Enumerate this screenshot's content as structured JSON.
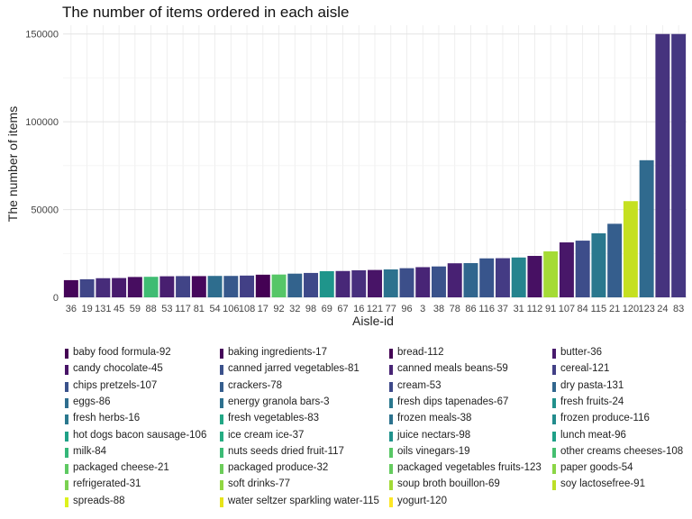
{
  "chart_data": {
    "type": "bar",
    "title": "The number of items ordered in each aisle",
    "xlabel": "Aisle-id",
    "ylabel": "The number of items",
    "ylim": [
      0,
      155000
    ],
    "yticks": [
      0,
      50000,
      100000,
      150000
    ],
    "ytick_labels": [
      "0",
      "50000",
      "100000",
      "150000"
    ],
    "grid": true,
    "legend_position": "bottom",
    "categories": [
      "36",
      "19",
      "131",
      "45",
      "59",
      "88",
      "53",
      "117",
      "81",
      "54",
      "106",
      "108",
      "17",
      "92",
      "32",
      "98",
      "69",
      "67",
      "16",
      "121",
      "77",
      "96",
      "3",
      "38",
      "78",
      "86",
      "116",
      "37",
      "31",
      "112",
      "91",
      "107",
      "84",
      "115",
      "21",
      "120",
      "123",
      "24",
      "83"
    ],
    "values": [
      9800,
      10300,
      10900,
      11000,
      11600,
      11700,
      12000,
      12100,
      12100,
      12200,
      12200,
      12400,
      12900,
      13000,
      13500,
      13900,
      14900,
      15000,
      15400,
      15600,
      15900,
      16600,
      17200,
      17600,
      19400,
      19500,
      22200,
      22300,
      22700,
      23600,
      26200,
      31300,
      32300,
      36500,
      41900,
      54800,
      78100,
      150000,
      150000
    ],
    "color_order": [
      1,
      21,
      12,
      7,
      3,
      38,
      8,
      20,
      2,
      33,
      27,
      19,
      0,
      39,
      30,
      22,
      37,
      11,
      13,
      5,
      34,
      24,
      10,
      25,
      9,
      31,
      26,
      17,
      36,
      4,
      40,
      6,
      23,
      35,
      29,
      41,
      32,
      14,
      15
    ],
    "palette": [
      "#440154",
      "#450559",
      "#46085c",
      "#470d60",
      "#471063",
      "#481467",
      "#481769",
      "#481b6d",
      "#481f70",
      "#482173",
      "#482576",
      "#482878",
      "#472c7a",
      "#472f7d",
      "#46337e",
      "#453781",
      "#453882",
      "#443b84",
      "#433e85",
      "#424086",
      "#414487",
      "#404688",
      "#3e4989",
      "#3d4d8a",
      "#3c4f8a",
      "#3a528b",
      "#38558c",
      "#37588c",
      "#365b8c",
      "#355e8d",
      "#33638d",
      "#31668e",
      "#306a8e",
      "#2e6d8e",
      "#2c728e",
      "#2a788e",
      "#25848e",
      "#1f958b",
      "#3fbc73",
      "#56c667",
      "#a5db36",
      "#c5e021"
    ],
    "legend": [
      "baby food formula-92",
      "candy chocolate-45",
      "chips pretzels-107",
      "eggs-86",
      "fresh herbs-16",
      "hot dogs bacon sausage-106",
      "milk-84",
      "packaged cheese-21",
      "refrigerated-31",
      "spreads-88",
      "baking ingredients-17",
      "canned jarred vegetables-81",
      "crackers-78",
      "energy granola bars-3",
      "fresh vegetables-83",
      "ice cream ice-37",
      "nuts seeds dried fruit-117",
      "packaged produce-32",
      "soft drinks-77",
      "water seltzer sparkling water-115",
      "bread-112",
      "canned meals beans-59",
      "cream-53",
      "fresh dips tapenades-67",
      "frozen meals-38",
      "juice nectars-98",
      "oils vinegars-19",
      "packaged vegetables fruits-123",
      "soup broth bouillon-69",
      "yogurt-120",
      "butter-36",
      "cereal-121",
      "dry pasta-131",
      "fresh fruits-24",
      "frozen produce-116",
      "lunch meat-96",
      "other creams cheeses-108",
      "paper goods-54",
      "soy lactosefree-91"
    ],
    "legend_colors": [
      "#440154",
      "#481467",
      "#3a528b",
      "#2e6d8e",
      "#2a788e",
      "#1fa187",
      "#35b779",
      "#5ec962",
      "#7ad151",
      "#ddf21d",
      "#450559",
      "#3b518b",
      "#355e8d",
      "#2d708e",
      "#22a785",
      "#25ac82",
      "#3cbb75",
      "#6ccd5a",
      "#91d742",
      "#e7e419",
      "#440154",
      "#482475",
      "#3e4989",
      "#2a788e",
      "#2c728e",
      "#20928c",
      "#58c765",
      "#65cb5e",
      "#a2da37",
      "#fde725",
      "#481a6c",
      "#424086",
      "#31668e",
      "#21918c",
      "#228c8d",
      "#1fa088",
      "#45bf70",
      "#8bd646",
      "#bddf26"
    ]
  }
}
